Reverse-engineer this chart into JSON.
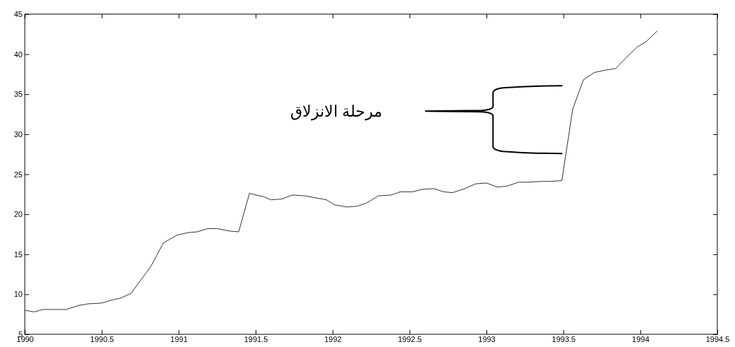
{
  "chart_data": {
    "type": "line",
    "x": [
      1990.0,
      1990.06,
      1990.12,
      1990.27,
      1990.35,
      1990.41,
      1990.5,
      1990.57,
      1990.62,
      1990.69,
      1990.82,
      1990.9,
      1990.99,
      1991.06,
      1991.12,
      1991.19,
      1991.25,
      1991.33,
      1991.39,
      1991.46,
      1991.55,
      1991.6,
      1991.67,
      1991.74,
      1991.82,
      1991.96,
      1992.01,
      1992.09,
      1992.16,
      1992.22,
      1992.3,
      1992.38,
      1992.44,
      1992.52,
      1992.58,
      1992.66,
      1992.72,
      1992.78,
      1992.86,
      1992.93,
      1993.0,
      1993.07,
      1993.13,
      1993.21,
      1993.27,
      1993.35,
      1993.41,
      1993.49,
      1993.56,
      1993.63,
      1993.7,
      1993.77,
      1993.84,
      1993.91,
      1993.98,
      1994.04,
      1994.11
    ],
    "series": [
      {
        "color": "#333333",
        "values": [
          8.0,
          7.8,
          8.1,
          8.1,
          8.6,
          8.8,
          8.9,
          9.3,
          9.5,
          10.1,
          13.5,
          16.4,
          17.4,
          17.7,
          17.8,
          18.2,
          18.2,
          17.9,
          17.8,
          22.6,
          22.2,
          21.8,
          21.9,
          22.4,
          22.3,
          21.8,
          21.2,
          20.9,
          21.0,
          21.4,
          22.3,
          22.4,
          22.8,
          22.8,
          23.1,
          23.2,
          22.8,
          22.7,
          23.2,
          23.8,
          23.9,
          23.4,
          23.5,
          24.0,
          24.0,
          24.1,
          24.1,
          24.2,
          33.1,
          36.8,
          37.7,
          38.0,
          38.2,
          39.6,
          40.9,
          41.6,
          42.9
        ]
      }
    ],
    "xlim": [
      1990,
      1994.5
    ],
    "xticks": [
      1990,
      1990.5,
      1991,
      1991.5,
      1992,
      1992.5,
      1993,
      1993.5,
      1994,
      1994.5
    ],
    "ylim": [
      5,
      45
    ],
    "yticks": [
      5,
      10,
      15,
      20,
      25,
      30,
      35,
      40,
      45
    ],
    "grid": false,
    "marker": "none",
    "line_style": "solid",
    "annotations": [
      "مرحلة الانزلاق"
    ]
  }
}
